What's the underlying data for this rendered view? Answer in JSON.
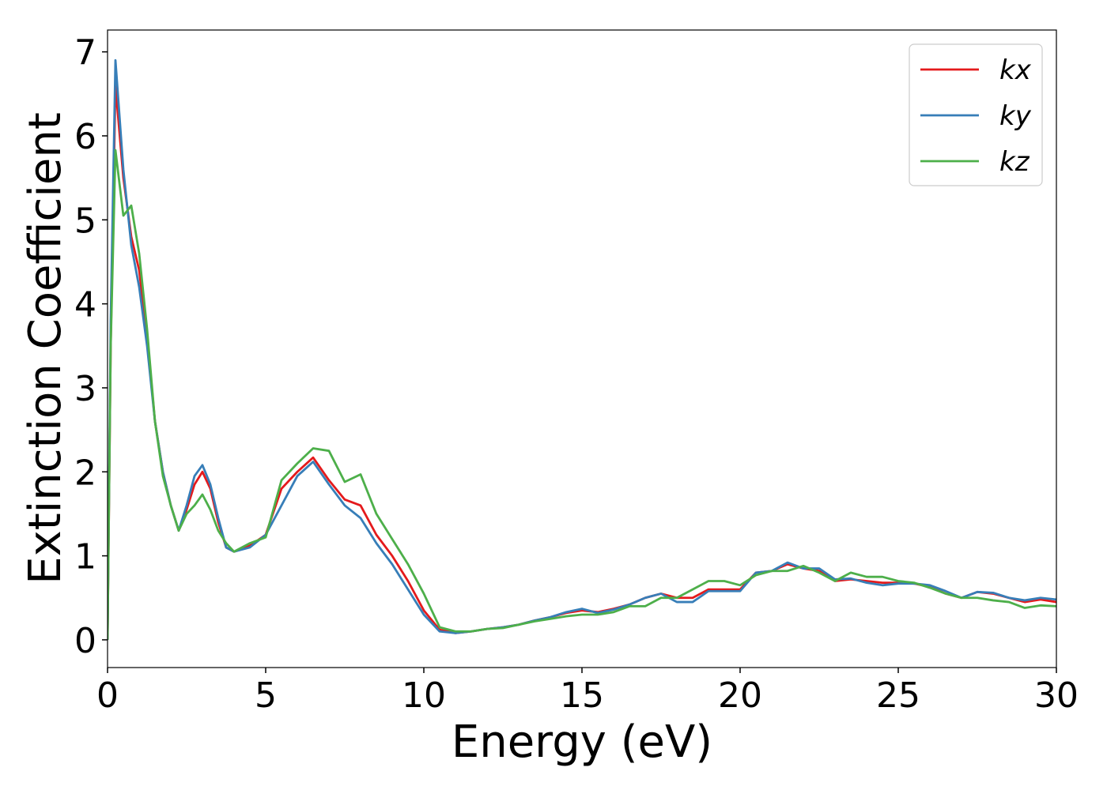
{
  "chart_data": {
    "type": "line",
    "xlabel": "Energy (eV)",
    "ylabel": "Extinction Coefficient",
    "xlim": [
      0,
      30
    ],
    "ylim": [
      -0.33,
      7.26
    ],
    "xticks": [
      0,
      5,
      10,
      15,
      20,
      25,
      30
    ],
    "yticks": [
      0,
      1,
      2,
      3,
      4,
      5,
      6,
      7
    ],
    "legend": "upper right",
    "x": [
      0,
      0.1,
      0.25,
      0.5,
      0.75,
      1,
      1.25,
      1.5,
      1.75,
      2,
      2.25,
      2.5,
      2.75,
      3,
      3.25,
      3.5,
      3.75,
      4,
      4.5,
      5,
      5.5,
      6,
      6.5,
      7,
      7.5,
      8,
      8.5,
      9,
      9.5,
      10,
      10.5,
      11,
      11.5,
      12,
      12.5,
      13,
      13.5,
      14,
      14.5,
      15,
      15.5,
      16,
      16.5,
      17,
      17.5,
      18,
      18.5,
      19,
      19.5,
      20,
      20.5,
      21,
      21.5,
      22,
      22.5,
      23,
      23.5,
      24,
      24.5,
      25,
      25.5,
      26,
      26.5,
      27,
      27.5,
      28,
      28.5,
      29,
      29.5,
      30
    ],
    "series": [
      {
        "name": "kx",
        "color": "#e41a1c",
        "values": [
          0,
          3.5,
          6.6,
          5.5,
          4.8,
          4.4,
          3.6,
          2.6,
          2.0,
          1.6,
          1.3,
          1.55,
          1.85,
          2.0,
          1.8,
          1.4,
          1.1,
          1.05,
          1.12,
          1.25,
          1.8,
          2.0,
          2.17,
          1.9,
          1.67,
          1.6,
          1.25,
          1.0,
          0.7,
          0.35,
          0.12,
          0.08,
          0.1,
          0.13,
          0.15,
          0.18,
          0.23,
          0.27,
          0.32,
          0.35,
          0.33,
          0.37,
          0.42,
          0.5,
          0.55,
          0.5,
          0.5,
          0.6,
          0.6,
          0.6,
          0.8,
          0.82,
          0.9,
          0.85,
          0.82,
          0.7,
          0.72,
          0.7,
          0.68,
          0.68,
          0.67,
          0.63,
          0.55,
          0.5,
          0.57,
          0.55,
          0.5,
          0.45,
          0.48,
          0.45
        ]
      },
      {
        "name": "ky",
        "color": "#377eb8",
        "values": [
          0,
          3.8,
          6.9,
          5.6,
          4.7,
          4.2,
          3.5,
          2.6,
          2.0,
          1.6,
          1.3,
          1.6,
          1.95,
          2.08,
          1.85,
          1.45,
          1.1,
          1.05,
          1.1,
          1.25,
          1.6,
          1.95,
          2.12,
          1.85,
          1.6,
          1.45,
          1.15,
          0.9,
          0.6,
          0.3,
          0.1,
          0.08,
          0.1,
          0.13,
          0.15,
          0.18,
          0.23,
          0.27,
          0.33,
          0.37,
          0.32,
          0.36,
          0.42,
          0.5,
          0.55,
          0.45,
          0.45,
          0.58,
          0.58,
          0.58,
          0.8,
          0.82,
          0.92,
          0.85,
          0.85,
          0.72,
          0.73,
          0.68,
          0.65,
          0.67,
          0.67,
          0.65,
          0.58,
          0.5,
          0.57,
          0.56,
          0.5,
          0.47,
          0.5,
          0.48
        ]
      },
      {
        "name": "kz",
        "color": "#4daf4a",
        "values": [
          0,
          3.5,
          5.83,
          5.05,
          5.17,
          4.6,
          3.7,
          2.6,
          1.95,
          1.6,
          1.3,
          1.5,
          1.6,
          1.73,
          1.55,
          1.3,
          1.15,
          1.05,
          1.15,
          1.22,
          1.9,
          2.1,
          2.28,
          2.25,
          1.88,
          1.97,
          1.5,
          1.2,
          0.9,
          0.55,
          0.15,
          0.1,
          0.1,
          0.13,
          0.14,
          0.18,
          0.22,
          0.25,
          0.28,
          0.3,
          0.3,
          0.33,
          0.4,
          0.4,
          0.5,
          0.5,
          0.6,
          0.7,
          0.7,
          0.65,
          0.77,
          0.82,
          0.82,
          0.88,
          0.8,
          0.7,
          0.8,
          0.75,
          0.75,
          0.7,
          0.68,
          0.62,
          0.55,
          0.5,
          0.5,
          0.47,
          0.45,
          0.38,
          0.41,
          0.4
        ]
      }
    ]
  }
}
